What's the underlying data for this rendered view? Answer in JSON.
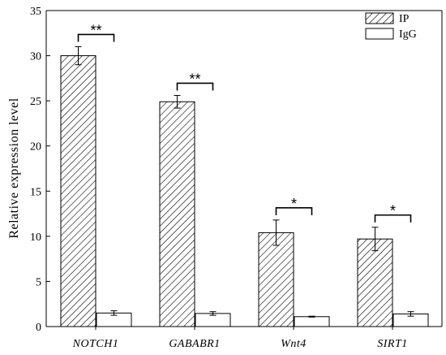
{
  "chart_data": {
    "type": "bar",
    "ylabel": "Relative expression level",
    "ylim": [
      0,
      35
    ],
    "yticks": [
      0,
      5,
      10,
      15,
      20,
      25,
      30,
      35
    ],
    "categories": [
      "NOTCH1",
      "GABABR1",
      "Wnt4",
      "SIRT1"
    ],
    "series": [
      {
        "name": "IP",
        "values": [
          30.0,
          24.9,
          10.4,
          9.7
        ],
        "errors": [
          1.0,
          0.7,
          1.4,
          1.3
        ],
        "pattern": "diagonal-hatch"
      },
      {
        "name": "IgG",
        "values": [
          1.5,
          1.45,
          1.1,
          1.4
        ],
        "errors": [
          0.25,
          0.2,
          0.05,
          0.25
        ],
        "pattern": "none"
      }
    ],
    "significance": [
      "**",
      "**",
      "*",
      "*"
    ],
    "legend_position": "top-right",
    "colors": {
      "bar_stroke": "#000000",
      "bar_fill": "#ffffff",
      "hatch": "#000000"
    }
  }
}
